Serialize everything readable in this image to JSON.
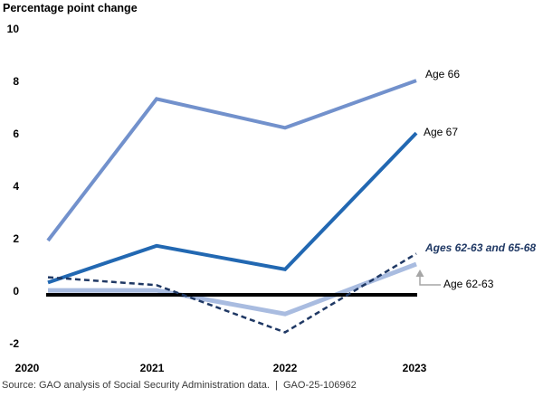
{
  "title": "Percentage point change",
  "source": "Source: GAO analysis of Social Security Administration data.  |  GAO-25-106962",
  "colors": {
    "age66": "#7291cc",
    "age67": "#2268b2",
    "combined": "#1f3864",
    "age6263": "#a9bce0",
    "zero_line": "#000000",
    "callout_arrow": "#a6a6a6"
  },
  "chart_data": {
    "type": "line",
    "title": "Percentage point change",
    "x": [
      2020,
      2021,
      2022,
      2023
    ],
    "series": [
      {
        "name": "Age 66",
        "color_key": "age66",
        "style": "solid",
        "values": [
          2.0,
          7.4,
          6.3,
          8.1
        ]
      },
      {
        "name": "Age 67",
        "color_key": "age67",
        "style": "solid",
        "values": [
          0.4,
          1.8,
          0.9,
          6.1
        ]
      },
      {
        "name": "Ages 62-63 and 65-68",
        "color_key": "combined",
        "style": "dashed",
        "values": [
          0.6,
          0.3,
          -1.5,
          1.5
        ]
      },
      {
        "name": "Age 62-63",
        "color_key": "age6263",
        "style": "solid",
        "values": [
          0.1,
          0.1,
          -0.8,
          1.1
        ]
      }
    ],
    "ylabel": "Percentage point change",
    "xlabel": "",
    "ylim": [
      -2,
      10
    ],
    "yticks": [
      10,
      8,
      6,
      4,
      2,
      0,
      -2
    ],
    "zero_baseline": true,
    "grid": false,
    "legend": "inline-end-labels"
  }
}
